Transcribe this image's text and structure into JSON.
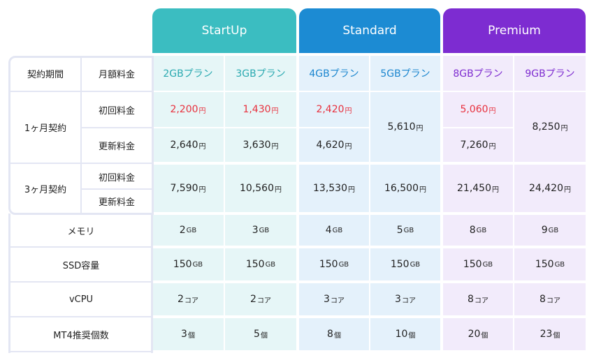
{
  "plans": [
    {
      "name": "StartUp",
      "color": "#3bbdc1"
    },
    {
      "name": "Standard",
      "color": "#1c8bd3"
    },
    {
      "name": "Premium",
      "color": "#7d2cd1"
    }
  ],
  "header": {
    "contract_period": "契約期間",
    "monthly_fee": "月額料金",
    "plans": [
      "2GBプラン",
      "3GBプラン",
      "4GBプラン",
      "5GBプラン",
      "8GBプラン",
      "9GBプラン"
    ]
  },
  "yen": "円",
  "one_month": {
    "label": "1ヶ月契約",
    "initial_label": "初回料金",
    "renewal_label": "更新料金",
    "initial": [
      "2,200",
      "1,430",
      "2,420",
      "5,060"
    ],
    "renewal": [
      "2,640",
      "3,630",
      "4,620",
      "7,260"
    ],
    "merged_5gb": "5,610",
    "merged_9gb": "8,250"
  },
  "three_month": {
    "label": "3ヶ月契約",
    "initial_label": "初回料金",
    "renewal_label": "更新料金",
    "values": [
      "7,590",
      "10,560",
      "13,530",
      "16,500",
      "21,450",
      "24,420"
    ]
  },
  "memory": {
    "label": "メモリ",
    "values": [
      "2",
      "3",
      "4",
      "5",
      "8",
      "9"
    ],
    "unit": "GB"
  },
  "ssd": {
    "label": "SSD容量",
    "values": [
      "150",
      "150",
      "150",
      "150",
      "150",
      "150"
    ],
    "unit": "GB"
  },
  "vcpu": {
    "label": "vCPU",
    "values": [
      "2",
      "2",
      "3",
      "3",
      "8",
      "8"
    ],
    "unit": "コア"
  },
  "mt4": {
    "label": "MT4推奨個数",
    "values": [
      "3",
      "5",
      "8",
      "10",
      "20",
      "23"
    ],
    "unit": "個"
  }
}
